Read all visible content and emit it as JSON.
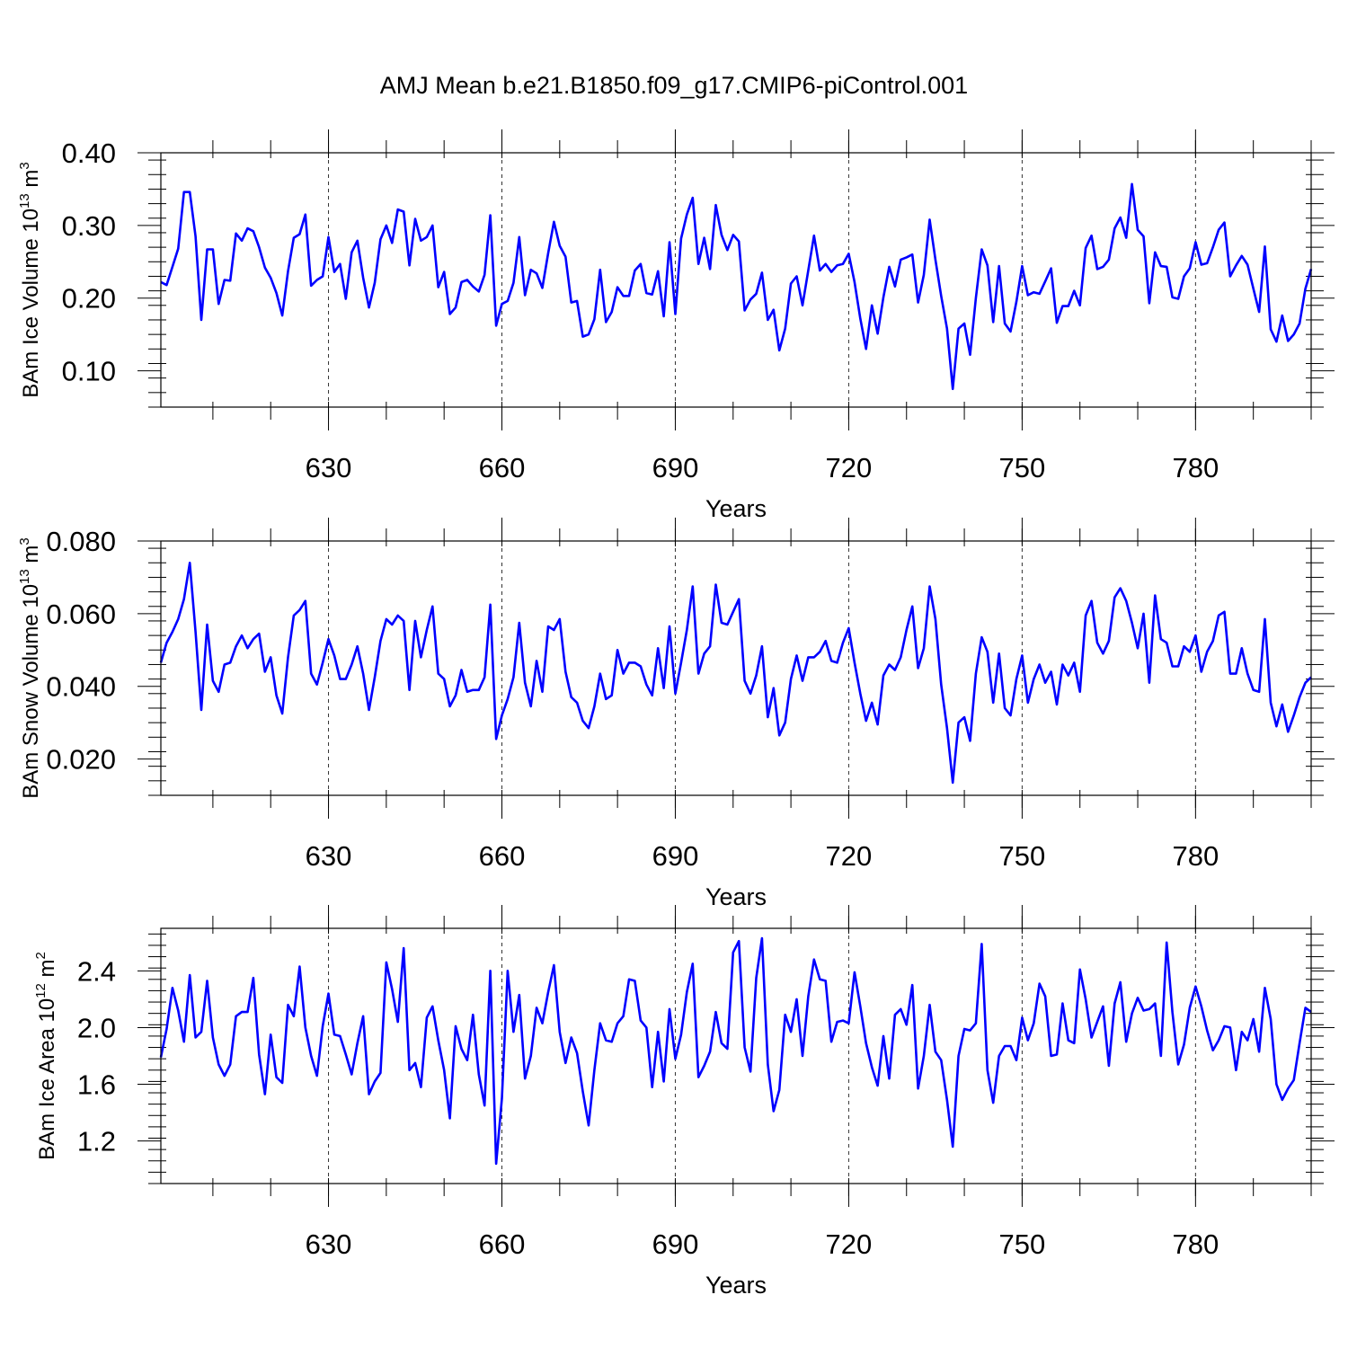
{
  "title": "AMJ Mean b.e21.B1850.f09_g17.CMIP6-piControl.001",
  "line_color": "#0000ff",
  "chart_data": [
    {
      "type": "line",
      "title": "",
      "ylabel": "BAm Ice Volume 10",
      "ylabel_exp": "13",
      "ylabel_unit": " m",
      "ylabel_unit_exp": "3",
      "xlabel": "Years",
      "xlim": [
        601,
        800
      ],
      "ylim": [
        0.05,
        0.4
      ],
      "yticks": [
        0.1,
        0.2,
        0.3,
        0.4
      ],
      "ytick_labels": [
        "0.10",
        "0.20",
        "0.30",
        "0.40"
      ],
      "xticks": [
        630,
        660,
        690,
        720,
        750,
        780
      ],
      "xtick_labels": [
        "630",
        "660",
        "690",
        "720",
        "750",
        "780"
      ],
      "grid": "dashed vertical lines at x ticks",
      "x_start": 601,
      "values": [
        0.222,
        0.218,
        0.243,
        0.268,
        0.346,
        0.346,
        0.285,
        0.17,
        0.267,
        0.267,
        0.192,
        0.225,
        0.224,
        0.289,
        0.279,
        0.296,
        0.292,
        0.27,
        0.242,
        0.228,
        0.207,
        0.176,
        0.237,
        0.283,
        0.288,
        0.315,
        0.217,
        0.225,
        0.23,
        0.284,
        0.236,
        0.247,
        0.199,
        0.263,
        0.279,
        0.228,
        0.187,
        0.221,
        0.281,
        0.3,
        0.276,
        0.322,
        0.319,
        0.245,
        0.309,
        0.279,
        0.284,
        0.3,
        0.215,
        0.236,
        0.178,
        0.187,
        0.222,
        0.225,
        0.216,
        0.209,
        0.232,
        0.314,
        0.162,
        0.192,
        0.196,
        0.221,
        0.284,
        0.204,
        0.239,
        0.234,
        0.214,
        0.262,
        0.305,
        0.272,
        0.257,
        0.194,
        0.196,
        0.147,
        0.15,
        0.171,
        0.239,
        0.167,
        0.181,
        0.215,
        0.203,
        0.203,
        0.238,
        0.247,
        0.207,
        0.205,
        0.237,
        0.175,
        0.277,
        0.178,
        0.282,
        0.315,
        0.338,
        0.247,
        0.283,
        0.24,
        0.328,
        0.287,
        0.266,
        0.287,
        0.278,
        0.183,
        0.198,
        0.206,
        0.235,
        0.17,
        0.184,
        0.128,
        0.158,
        0.22,
        0.23,
        0.19,
        0.238,
        0.286,
        0.238,
        0.247,
        0.236,
        0.245,
        0.247,
        0.261,
        0.222,
        0.172,
        0.13,
        0.19,
        0.151,
        0.201,
        0.243,
        0.216,
        0.253,
        0.256,
        0.26,
        0.194,
        0.232,
        0.308,
        0.253,
        0.203,
        0.158,
        0.075,
        0.158,
        0.165,
        0.122,
        0.2,
        0.267,
        0.245,
        0.167,
        0.244,
        0.165,
        0.154,
        0.195,
        0.244,
        0.204,
        0.208,
        0.206,
        0.223,
        0.241,
        0.166,
        0.189,
        0.189,
        0.21,
        0.19,
        0.269,
        0.286,
        0.24,
        0.243,
        0.253,
        0.296,
        0.311,
        0.283,
        0.357,
        0.294,
        0.285,
        0.193,
        0.263,
        0.244,
        0.243,
        0.201,
        0.199,
        0.23,
        0.241,
        0.277,
        0.246,
        0.248,
        0.27,
        0.294,
        0.304,
        0.23,
        0.245,
        0.258,
        0.246,
        0.213,
        0.181,
        0.271,
        0.157,
        0.14,
        0.176,
        0.141,
        0.15,
        0.165,
        0.213,
        0.24
      ]
    },
    {
      "type": "line",
      "title": "",
      "ylabel": "BAm Snow Volume 10",
      "ylabel_exp": "13",
      "ylabel_unit": " m",
      "ylabel_unit_exp": "3",
      "xlabel": "Years",
      "xlim": [
        601,
        800
      ],
      "ylim": [
        0.01,
        0.08
      ],
      "yticks": [
        0.02,
        0.04,
        0.06,
        0.08
      ],
      "ytick_labels": [
        "0.020",
        "0.040",
        "0.060",
        "0.080"
      ],
      "xticks": [
        630,
        660,
        690,
        720,
        750,
        780
      ],
      "xtick_labels": [
        "630",
        "660",
        "690",
        "720",
        "750",
        "780"
      ],
      "grid": "dashed vertical lines at x ticks",
      "x_start": 601,
      "values": [
        0.0465,
        0.052,
        0.055,
        0.0585,
        0.064,
        0.074,
        0.055,
        0.0335,
        0.057,
        0.0415,
        0.0385,
        0.046,
        0.0465,
        0.051,
        0.054,
        0.0505,
        0.053,
        0.0545,
        0.044,
        0.048,
        0.0375,
        0.0325,
        0.048,
        0.0595,
        0.061,
        0.0635,
        0.0435,
        0.0405,
        0.0465,
        0.053,
        0.0485,
        0.042,
        0.042,
        0.046,
        0.051,
        0.0435,
        0.0335,
        0.0425,
        0.0525,
        0.0585,
        0.057,
        0.0595,
        0.058,
        0.039,
        0.058,
        0.048,
        0.0555,
        0.062,
        0.0435,
        0.042,
        0.0345,
        0.0375,
        0.0445,
        0.0385,
        0.039,
        0.039,
        0.0425,
        0.0625,
        0.0255,
        0.032,
        0.0365,
        0.0425,
        0.0575,
        0.041,
        0.0345,
        0.047,
        0.0385,
        0.0565,
        0.0555,
        0.0585,
        0.044,
        0.037,
        0.0355,
        0.0305,
        0.0285,
        0.0345,
        0.0435,
        0.0365,
        0.0375,
        0.05,
        0.0435,
        0.0465,
        0.0465,
        0.0455,
        0.0405,
        0.0375,
        0.0505,
        0.0395,
        0.0565,
        0.038,
        0.0465,
        0.0555,
        0.0675,
        0.0435,
        0.049,
        0.051,
        0.068,
        0.0575,
        0.057,
        0.0605,
        0.064,
        0.0415,
        0.038,
        0.043,
        0.051,
        0.0315,
        0.0395,
        0.0265,
        0.03,
        0.042,
        0.0485,
        0.0415,
        0.048,
        0.048,
        0.0495,
        0.0525,
        0.047,
        0.0465,
        0.052,
        0.056,
        0.0465,
        0.038,
        0.0305,
        0.0355,
        0.0295,
        0.043,
        0.046,
        0.0445,
        0.048,
        0.0555,
        0.062,
        0.045,
        0.0505,
        0.0675,
        0.0585,
        0.0405,
        0.0285,
        0.0135,
        0.03,
        0.0315,
        0.025,
        0.0435,
        0.0535,
        0.0495,
        0.0355,
        0.049,
        0.034,
        0.032,
        0.042,
        0.0485,
        0.0355,
        0.042,
        0.046,
        0.041,
        0.044,
        0.035,
        0.046,
        0.043,
        0.0465,
        0.0385,
        0.0595,
        0.0635,
        0.052,
        0.049,
        0.0525,
        0.0645,
        0.067,
        0.0635,
        0.0575,
        0.0505,
        0.06,
        0.041,
        0.065,
        0.053,
        0.052,
        0.0455,
        0.0455,
        0.051,
        0.0495,
        0.054,
        0.044,
        0.0495,
        0.0525,
        0.0595,
        0.0605,
        0.0435,
        0.0435,
        0.0505,
        0.0435,
        0.039,
        0.0385,
        0.0585,
        0.0355,
        0.029,
        0.035,
        0.0275,
        0.032,
        0.037,
        0.041,
        0.0425
      ]
    },
    {
      "type": "line",
      "title": "",
      "ylabel": "BAm Ice Area 10",
      "ylabel_exp": "12",
      "ylabel_unit": " m",
      "ylabel_unit_exp": "2",
      "xlabel": "Years",
      "xlim": [
        601,
        800
      ],
      "ylim": [
        0.9,
        2.7
      ],
      "yticks": [
        1.2,
        1.6,
        2.0,
        2.4
      ],
      "ytick_labels": [
        "1.2",
        "1.6",
        "2.0",
        "2.4"
      ],
      "xticks": [
        630,
        660,
        690,
        720,
        750,
        780
      ],
      "xtick_labels": [
        "630",
        "660",
        "690",
        "720",
        "750",
        "780"
      ],
      "grid": "dashed vertical lines at x ticks",
      "x_start": 601,
      "values": [
        1.79,
        1.99,
        2.28,
        2.12,
        1.9,
        2.37,
        1.93,
        1.97,
        2.33,
        1.93,
        1.74,
        1.66,
        1.74,
        2.08,
        2.11,
        2.11,
        2.35,
        1.81,
        1.53,
        1.95,
        1.65,
        1.61,
        2.16,
        2.08,
        2.43,
        2.0,
        1.8,
        1.66,
        2.01,
        2.24,
        1.95,
        1.94,
        1.81,
        1.67,
        1.89,
        2.08,
        1.53,
        1.62,
        1.68,
        2.46,
        2.27,
        2.04,
        2.56,
        1.7,
        1.75,
        1.58,
        2.07,
        2.15,
        1.91,
        1.7,
        1.36,
        2.01,
        1.85,
        1.77,
        2.09,
        1.67,
        1.45,
        2.4,
        1.04,
        1.5,
        2.4,
        1.97,
        2.23,
        1.64,
        1.8,
        2.14,
        2.03,
        2.25,
        2.44,
        1.97,
        1.75,
        1.93,
        1.82,
        1.55,
        1.31,
        1.7,
        2.03,
        1.91,
        1.9,
        2.03,
        2.08,
        2.34,
        2.33,
        2.05,
        2.0,
        1.58,
        1.97,
        1.62,
        2.13,
        1.78,
        1.95,
        2.25,
        2.45,
        1.65,
        1.73,
        1.83,
        2.11,
        1.89,
        1.85,
        2.53,
        2.61,
        1.86,
        1.69,
        2.35,
        2.63,
        1.74,
        1.41,
        1.56,
        2.09,
        1.97,
        2.2,
        1.8,
        2.22,
        2.48,
        2.34,
        2.33,
        1.9,
        2.04,
        2.05,
        2.03,
        2.39,
        2.15,
        1.89,
        1.72,
        1.59,
        1.94,
        1.64,
        2.09,
        2.13,
        2.02,
        2.3,
        1.57,
        1.8,
        2.16,
        1.83,
        1.77,
        1.49,
        1.16,
        1.8,
        1.99,
        1.98,
        2.03,
        2.59,
        1.7,
        1.47,
        1.8,
        1.87,
        1.87,
        1.77,
        2.07,
        1.91,
        2.03,
        2.31,
        2.22,
        1.8,
        1.81,
        2.17,
        1.91,
        1.89,
        2.41,
        2.2,
        1.93,
        2.04,
        2.15,
        1.73,
        2.17,
        2.32,
        1.9,
        2.1,
        2.21,
        2.12,
        2.13,
        2.17,
        1.8,
        2.6,
        2.11,
        1.74,
        1.88,
        2.14,
        2.29,
        2.15,
        1.98,
        1.84,
        1.91,
        2.01,
        2.0,
        1.7,
        1.97,
        1.91,
        2.06,
        1.83,
        2.28,
        2.06,
        1.6,
        1.49,
        1.57,
        1.63,
        1.89,
        2.14,
        2.11
      ]
    }
  ]
}
